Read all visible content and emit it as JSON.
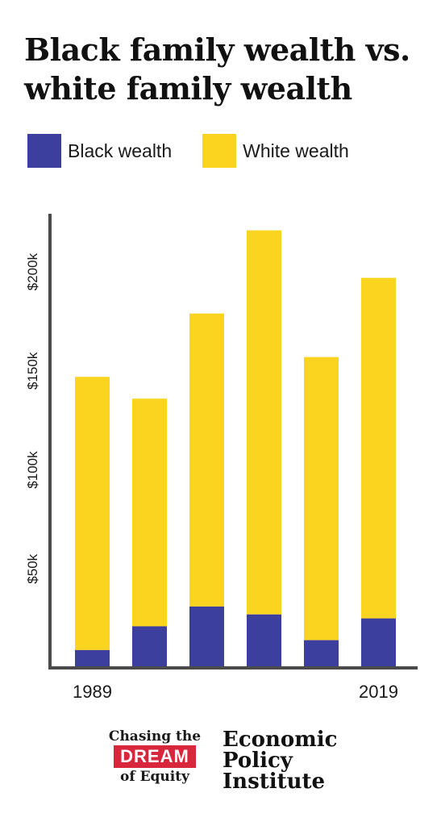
{
  "title_line1": "Black family wealth vs.",
  "title_line2": "white family wealth",
  "legend": {
    "black_label": "Black wealth",
    "white_label": "White wealth"
  },
  "colors": {
    "black": "#3c3f9e",
    "white": "#fad41e",
    "axis": "#4a4a4a"
  },
  "chart_data": {
    "type": "bar",
    "stacked": true,
    "categories": [
      "1989",
      "",
      "",
      "",
      "",
      "2019"
    ],
    "series": [
      {
        "name": "Black wealth",
        "values": [
          9000,
          21000,
          31000,
          27000,
          14000,
          25000
        ]
      },
      {
        "name": "White wealth",
        "values": [
          138000,
          115000,
          148000,
          194000,
          143000,
          172000
        ]
      }
    ],
    "yticks": [
      50000,
      100000,
      150000,
      200000
    ],
    "ytick_labels": [
      "$50k",
      "$100k",
      "$150k",
      "$200k"
    ],
    "ylim": [
      0,
      230000
    ],
    "title": "Black family wealth vs. white family wealth",
    "xlabel": "",
    "ylabel": "",
    "grid": false,
    "legend_position": "top"
  },
  "footer": {
    "dream_line1": "Chasing the",
    "dream_word": "DREAM",
    "dream_line3": "of Equity",
    "epi_line1": "Economic",
    "epi_line2": "Policy",
    "epi_line3": "Institute"
  }
}
